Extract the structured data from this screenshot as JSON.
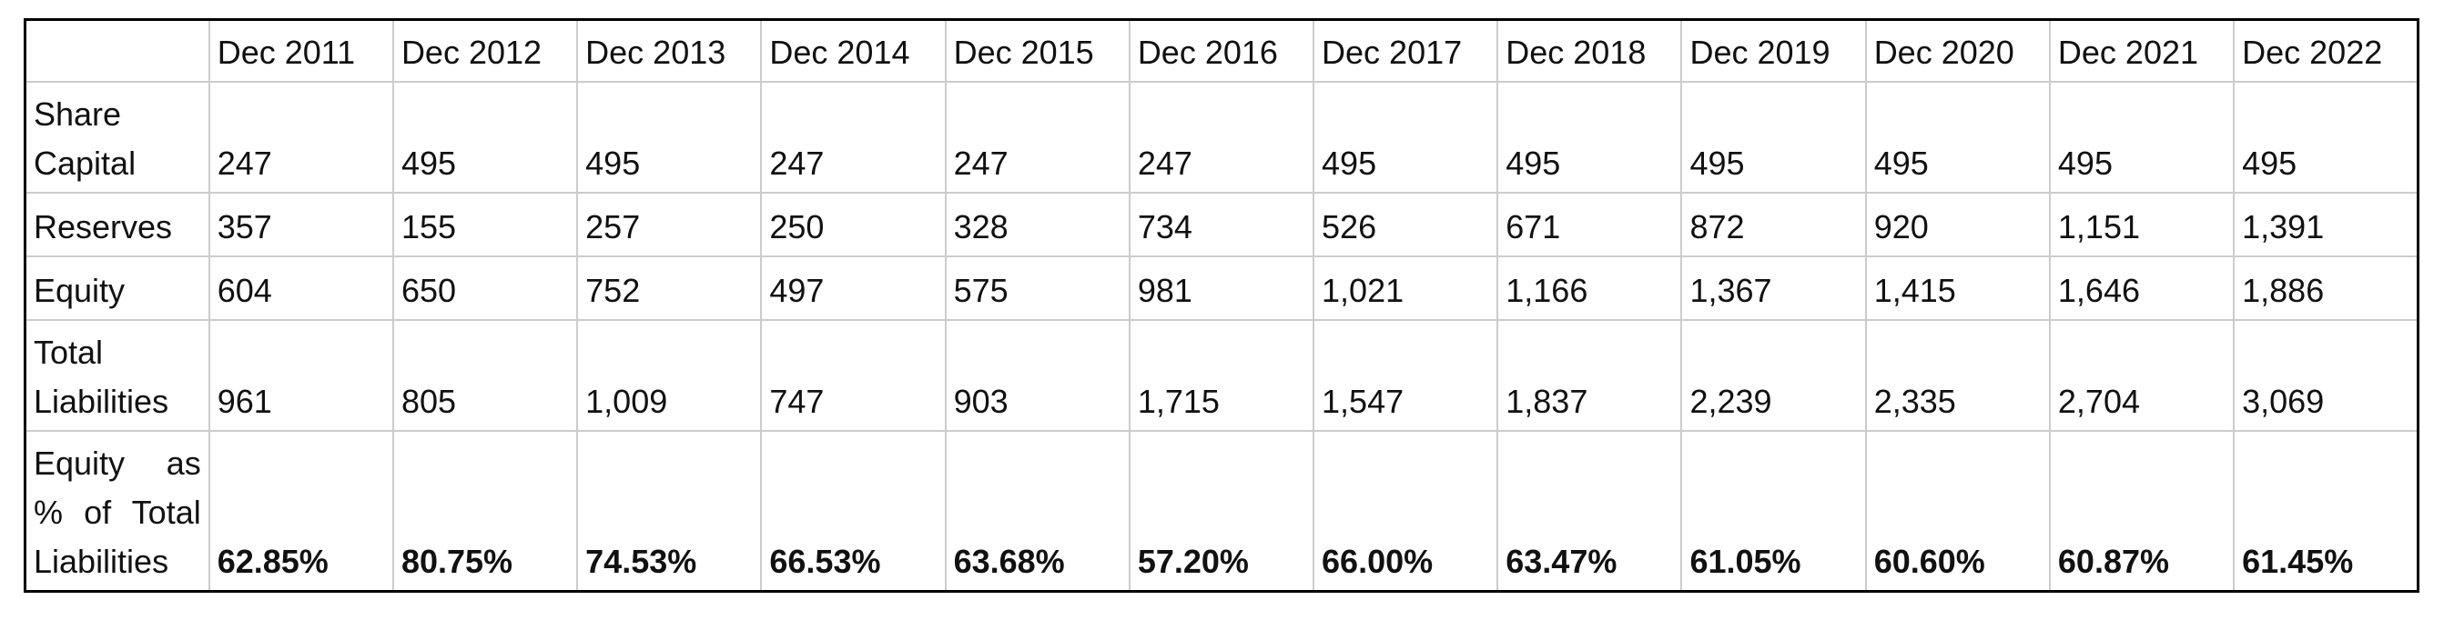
{
  "table": {
    "columns": [
      "Dec 2011",
      "Dec 2012",
      "Dec 2013",
      "Dec 2014",
      "Dec 2015",
      "Dec 2016",
      "Dec 2017",
      "Dec 2018",
      "Dec 2019",
      "Dec 2020",
      "Dec 2021",
      "Dec 2022"
    ],
    "rows": [
      {
        "label": "Share Capital",
        "cells": [
          "247",
          "495",
          "495",
          "247",
          "247",
          "247",
          "495",
          "495",
          "495",
          "495",
          "495",
          "495"
        ]
      },
      {
        "label": "Reserves",
        "cells": [
          "357",
          "155",
          "257",
          "250",
          "328",
          "734",
          "526",
          "671",
          "872",
          "920",
          "1,151",
          "1,391"
        ]
      },
      {
        "label": "Equity",
        "cells": [
          "604",
          "650",
          "752",
          "497",
          "575",
          "981",
          "1,021",
          "1,166",
          "1,367",
          "1,415",
          "1,646",
          "1,886"
        ]
      },
      {
        "label": "Total Liabilities",
        "cells": [
          "961",
          "805",
          "1,009",
          "747",
          "903",
          "1,715",
          "1,547",
          "1,837",
          "2,239",
          "2,335",
          "2,704",
          "3,069"
        ]
      },
      {
        "label": "Equity as % of Total Liabilities",
        "cells": [
          "62.85%",
          "80.75%",
          "74.53%",
          "66.53%",
          "63.68%",
          "57.20%",
          "66.00%",
          "63.47%",
          "61.05%",
          "60.60%",
          "60.87%",
          "61.45%"
        ],
        "bold": true
      }
    ]
  }
}
